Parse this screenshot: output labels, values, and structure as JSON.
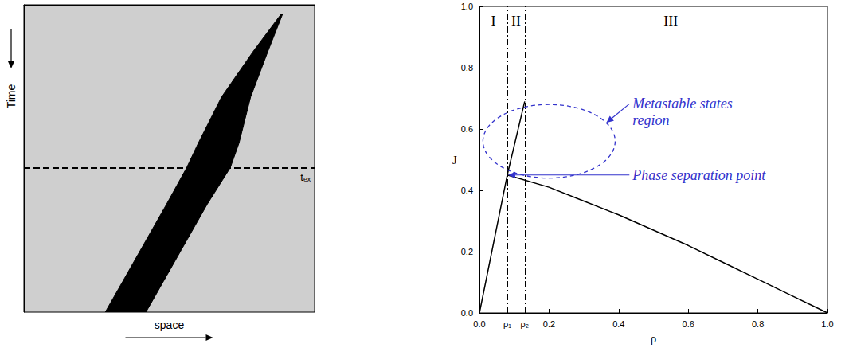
{
  "chart_data": [
    {
      "type": "band",
      "x_label": "space",
      "y_label": "Time",
      "xlim": [
        0,
        1
      ],
      "ylim": [
        1,
        0
      ],
      "tick_labels": false,
      "color": "#000000",
      "y": [
        0.03,
        0.15,
        0.3,
        0.45,
        0.53,
        0.65,
        0.8,
        0.9,
        1.0
      ],
      "x_low": [
        0.885,
        0.79,
        0.68,
        0.6,
        0.56,
        0.49,
        0.4,
        0.34,
        0.28
      ],
      "x_high": [
        0.89,
        0.84,
        0.78,
        0.74,
        0.71,
        0.63,
        0.54,
        0.48,
        0.42
      ],
      "hlines": [
        {
          "y": 0.53,
          "label": "tₑₓ",
          "line_style": "dashed"
        }
      ]
    },
    {
      "type": "line",
      "x_label": "ρ",
      "y_label": "J",
      "xlim": [
        0,
        1
      ],
      "ylim": [
        0,
        1
      ],
      "xticks": [
        {
          "value": 0,
          "label": "0.0"
        },
        {
          "value": 0.08,
          "label": "ρ₁"
        },
        {
          "value": 0.13,
          "label": "ρ₂"
        },
        0.2,
        0.4,
        0.6,
        0.8,
        {
          "value": 1,
          "label": "1.0"
        }
      ],
      "yticks": [
        {
          "value": 0,
          "label": "0.0"
        },
        0.2,
        0.4,
        0.6,
        0.8,
        {
          "value": 1,
          "label": "1.0"
        }
      ],
      "series": [
        {
          "x": [
            0,
            0.08,
            0.13
          ],
          "values": [
            0,
            0.45,
            0.69
          ],
          "color": "#000000"
        },
        {
          "x": [
            0.08,
            0.2,
            0.3,
            0.4,
            0.5,
            0.6,
            0.7,
            0.8,
            0.9,
            1.0
          ],
          "values": [
            0.45,
            0.41,
            0.365,
            0.32,
            0.27,
            0.22,
            0.165,
            0.11,
            0.055,
            0
          ],
          "color": "#000000"
        }
      ],
      "reference_lines": [
        {
          "x": 0.08,
          "line_style": "dashdot"
        },
        {
          "x": 0.13,
          "line_style": "dashdot"
        }
      ],
      "annotations": [
        {
          "text": "I",
          "x": 0.04,
          "y": 0.95
        },
        {
          "text": "II",
          "x": 0.105,
          "y": 0.95
        },
        {
          "text": "III",
          "x": 0.55,
          "y": 0.95
        },
        {
          "text": "Metastable states region",
          "x": 0.44,
          "y": 0.69,
          "color": "#3333cc",
          "ellipse": {
            "x": 0.2,
            "y": 0.56,
            "x_radius": 0.19,
            "y_radius": 0.12
          }
        },
        {
          "text": "Phase separation point",
          "x": 0.44,
          "y": 0.45,
          "color": "#3333cc",
          "arrow_to": [
            0.08,
            0.45
          ]
        }
      ]
    }
  ]
}
